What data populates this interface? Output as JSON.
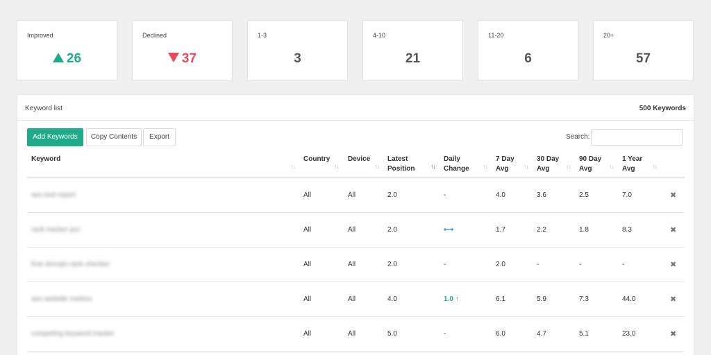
{
  "stats": [
    {
      "label": "Improved",
      "value": "26",
      "trend": "up"
    },
    {
      "label": "Declined",
      "value": "37",
      "trend": "down"
    },
    {
      "label": "1-3",
      "value": "3",
      "trend": "none"
    },
    {
      "label": "4-10",
      "value": "21",
      "trend": "none"
    },
    {
      "label": "11-20",
      "value": "6",
      "trend": "none"
    },
    {
      "label": "20+",
      "value": "57",
      "trend": "none"
    }
  ],
  "panel": {
    "title": "Keyword list",
    "count": "500 Keywords"
  },
  "toolbar": {
    "add_label": "Add Keywords",
    "copy_label": "Copy Contents",
    "export_label": "Export",
    "search_label": "Search:",
    "search_value": ""
  },
  "columns": {
    "keyword": "Keyword",
    "country": "Country",
    "device": "Device",
    "latest_1": "Latest",
    "latest_2": "Position",
    "daily_1": "Daily",
    "daily_2": "Change",
    "d7_1": "7 Day",
    "d7_2": "Avg",
    "d30_1": "30 Day",
    "d30_2": "Avg",
    "d90_1": "90 Day",
    "d90_2": "Avg",
    "y1_1": "1 Year",
    "y1_2": "Avg"
  },
  "rows": [
    {
      "keyword": "seo tool report",
      "country": "All",
      "device": "All",
      "latest": "2.0",
      "change": "-",
      "d7": "4.0",
      "d30": "3.6",
      "d90": "2.5",
      "y1": "7.0"
    },
    {
      "keyword": "rank tracker pro",
      "country": "All",
      "device": "All",
      "latest": "2.0",
      "change": "⟷",
      "d7": "1.7",
      "d30": "2.2",
      "d90": "1.8",
      "y1": "8.3"
    },
    {
      "keyword": "free domain rank checker",
      "country": "All",
      "device": "All",
      "latest": "2.0",
      "change": "-",
      "d7": "2.0",
      "d30": "-",
      "d90": "-",
      "y1": "-"
    },
    {
      "keyword": "seo website metrics",
      "country": "All",
      "device": "All",
      "latest": "4.0",
      "change": "1.0 ↑",
      "d7": "6.1",
      "d30": "5.9",
      "d90": "7.3",
      "y1": "44.0"
    },
    {
      "keyword": "competing keyword tracker",
      "country": "All",
      "device": "All",
      "latest": "5.0",
      "change": "-",
      "d7": "6.0",
      "d30": "4.7",
      "d90": "5.1",
      "y1": "23.0"
    }
  ],
  "icons": {
    "sort": "sort-arrows-icon",
    "delete": "close-icon",
    "up": "triangle-up-icon",
    "down": "triangle-down-icon"
  },
  "colors": {
    "accent": "#1fab89",
    "declined": "#e8495c",
    "neutral_change": "#2a8ec7"
  }
}
